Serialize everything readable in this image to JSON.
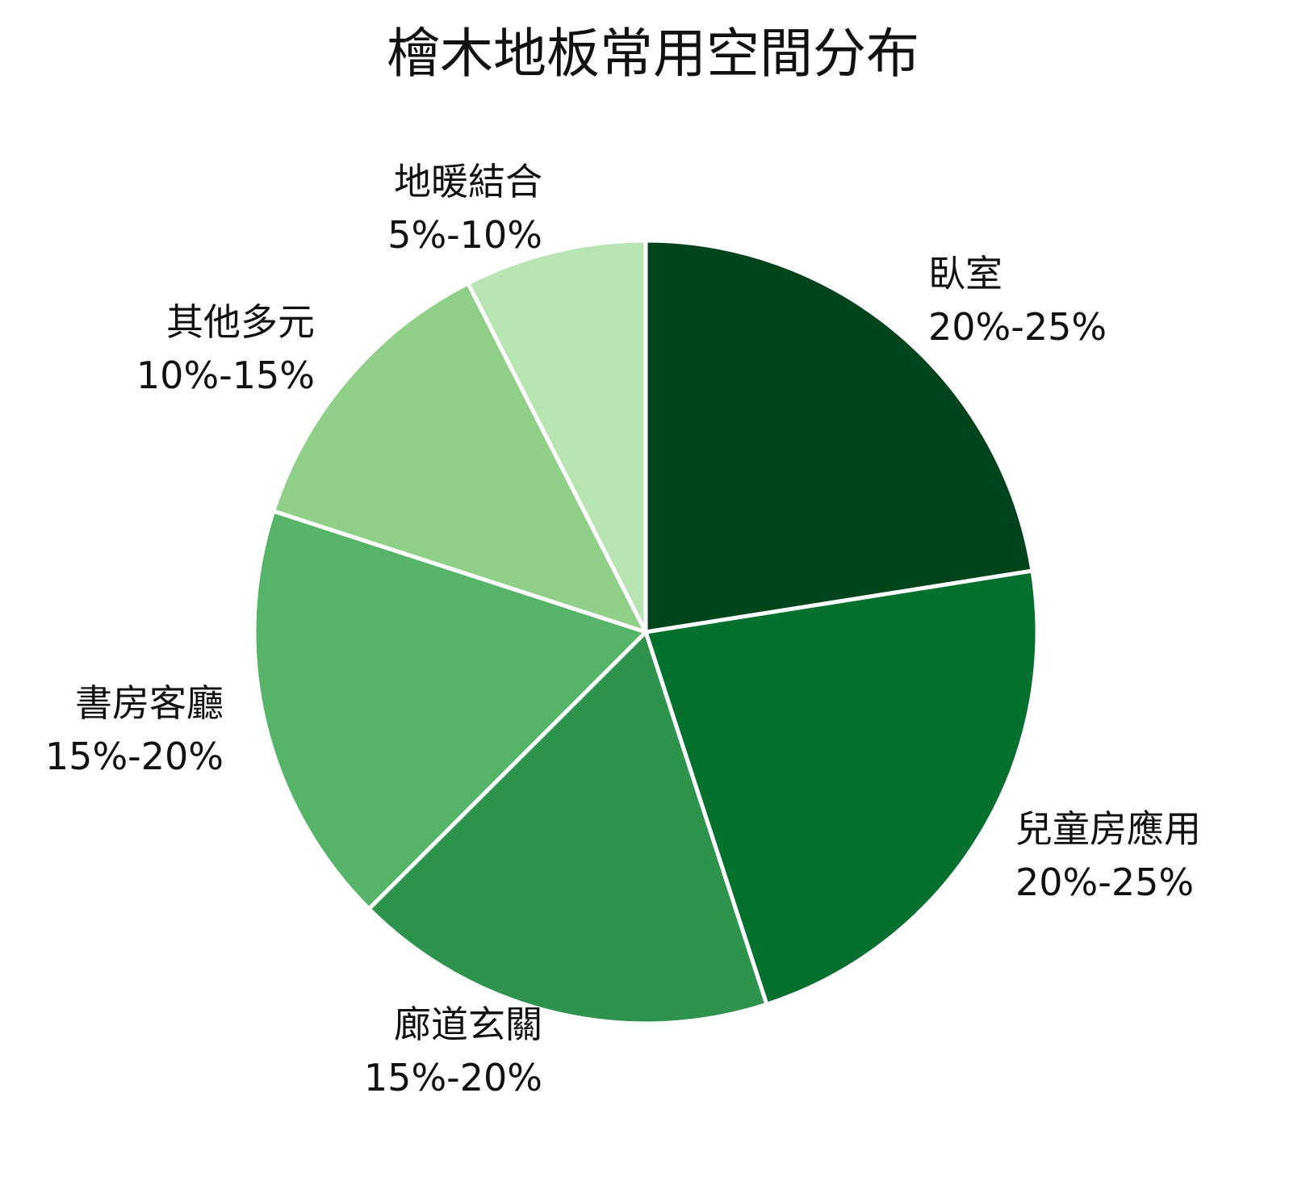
{
  "chart_data": {
    "type": "pie",
    "title": "檜木地板常用空間分布",
    "start_angle": "top",
    "direction": "clockwise",
    "slices": [
      {
        "label": "臥室",
        "range": "20%-25%",
        "value": 22.5,
        "color": "#00441b"
      },
      {
        "label": "兒童房應用",
        "range": "20%-25%",
        "value": 22.5,
        "color": "#06702f"
      },
      {
        "label": "廊道玄關",
        "range": "15%-20%",
        "value": 17.5,
        "color": "#2d934d"
      },
      {
        "label": "書房客廳",
        "range": "15%-20%",
        "value": 17.5,
        "color": "#55b468"
      },
      {
        "label": "其他多元",
        "range": "10%-15%",
        "value": 12.5,
        "color": "#8fcf88"
      },
      {
        "label": "地暖結合",
        "range": "5%-10%",
        "value": 7.5,
        "color": "#b8e3b2"
      }
    ]
  }
}
